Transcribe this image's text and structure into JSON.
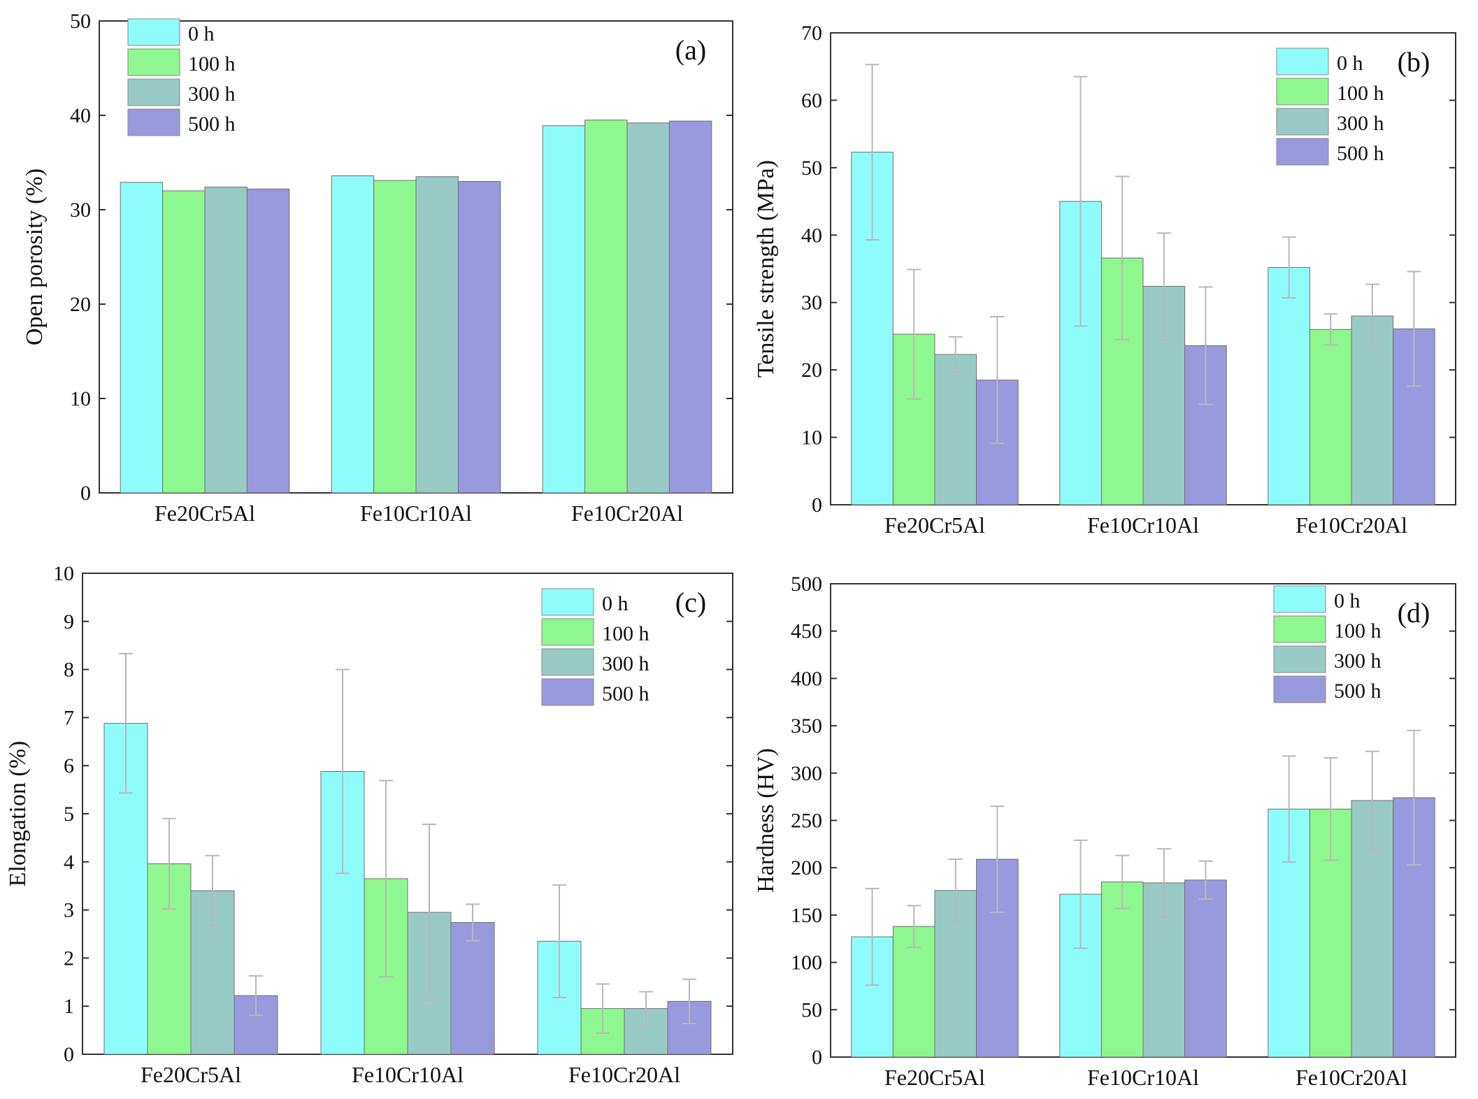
{
  "figure": {
    "colors": {
      "0 h": "#8ffcfc",
      "100 h": "#8ff78f",
      "300 h": "#99cbc6",
      "500 h": "#9999de",
      "error_bar": "#b8b8b8",
      "axis": "#333333"
    }
  },
  "chart_data": [
    {
      "id": "a",
      "type": "bar",
      "panel_label": "(a)",
      "title": "",
      "xlabel": "",
      "ylabel": "Open porosity (%)",
      "ylim": [
        0,
        50
      ],
      "yticks": [
        0,
        10,
        20,
        30,
        40,
        50
      ],
      "grid": false,
      "legend_position": "top-left",
      "categories": [
        "Fe20Cr5Al",
        "Fe10Cr10Al",
        "Fe10Cr20Al"
      ],
      "series": [
        {
          "name": "0 h",
          "values": [
            32.9,
            33.6,
            38.9
          ]
        },
        {
          "name": "100 h",
          "values": [
            32.0,
            33.1,
            39.5
          ]
        },
        {
          "name": "300 h",
          "values": [
            32.4,
            33.5,
            39.2
          ]
        },
        {
          "name": "500 h",
          "values": [
            32.2,
            33.0,
            39.4
          ]
        }
      ]
    },
    {
      "id": "b",
      "type": "bar",
      "panel_label": "(b)",
      "title": "",
      "xlabel": "",
      "ylabel": "Tensile strength (MPa)",
      "ylim": [
        0,
        70
      ],
      "yticks": [
        0,
        10,
        20,
        30,
        40,
        50,
        60,
        70
      ],
      "grid": false,
      "legend_position": "top-right",
      "categories": [
        "Fe20Cr5Al",
        "Fe10Cr10Al",
        "Fe10Cr20Al"
      ],
      "series": [
        {
          "name": "0 h",
          "values": [
            52.3,
            45.0,
            35.2
          ],
          "errors": [
            13.0,
            18.5,
            4.5
          ]
        },
        {
          "name": "100 h",
          "values": [
            25.3,
            36.6,
            26.0
          ],
          "errors": [
            9.6,
            12.1,
            2.3
          ]
        },
        {
          "name": "300 h",
          "values": [
            22.3,
            32.4,
            28.0
          ],
          "errors": [
            2.6,
            7.9,
            4.7
          ]
        },
        {
          "name": "500 h",
          "values": [
            18.5,
            23.6,
            26.1
          ],
          "errors": [
            9.4,
            8.7,
            8.5
          ]
        }
      ]
    },
    {
      "id": "c",
      "type": "bar",
      "panel_label": "(c)",
      "title": "",
      "xlabel": "",
      "ylabel": "Elongation (%)",
      "ylim": [
        0,
        10
      ],
      "yticks": [
        0,
        1,
        2,
        3,
        4,
        5,
        6,
        7,
        8,
        9,
        10
      ],
      "grid": false,
      "legend_position": "top-right",
      "categories": [
        "Fe20Cr5Al",
        "Fe10Cr10Al",
        "Fe10Cr20Al"
      ],
      "series": [
        {
          "name": "0 h",
          "values": [
            6.88,
            5.88,
            2.35
          ],
          "errors": [
            1.45,
            2.12,
            1.17
          ]
        },
        {
          "name": "100 h",
          "values": [
            3.96,
            3.65,
            0.95
          ],
          "errors": [
            0.94,
            2.04,
            0.51
          ]
        },
        {
          "name": "300 h",
          "values": [
            3.4,
            2.95,
            0.95
          ],
          "errors": [
            0.73,
            1.83,
            0.35
          ]
        },
        {
          "name": "500 h",
          "values": [
            1.22,
            2.74,
            1.1
          ],
          "errors": [
            0.41,
            0.38,
            0.46
          ]
        }
      ]
    },
    {
      "id": "d",
      "type": "bar",
      "panel_label": "(d)",
      "title": "",
      "xlabel": "",
      "ylabel": "Hardness (HV)",
      "ylim": [
        0,
        500
      ],
      "yticks": [
        0,
        50,
        100,
        150,
        200,
        250,
        300,
        350,
        400,
        450,
        500
      ],
      "grid": false,
      "legend_position": "top-right",
      "categories": [
        "Fe20Cr5Al",
        "Fe10Cr10Al",
        "Fe10Cr20Al"
      ],
      "series": [
        {
          "name": "0 h",
          "values": [
            127,
            172,
            262
          ],
          "errors": [
            51,
            57,
            56
          ]
        },
        {
          "name": "100 h",
          "values": [
            138,
            185,
            262
          ],
          "errors": [
            22,
            28,
            54
          ]
        },
        {
          "name": "300 h",
          "values": [
            176,
            184,
            271
          ],
          "errors": [
            33,
            36,
            52
          ]
        },
        {
          "name": "500 h",
          "values": [
            209,
            187,
            274
          ],
          "errors": [
            56,
            20,
            71
          ]
        }
      ]
    }
  ]
}
